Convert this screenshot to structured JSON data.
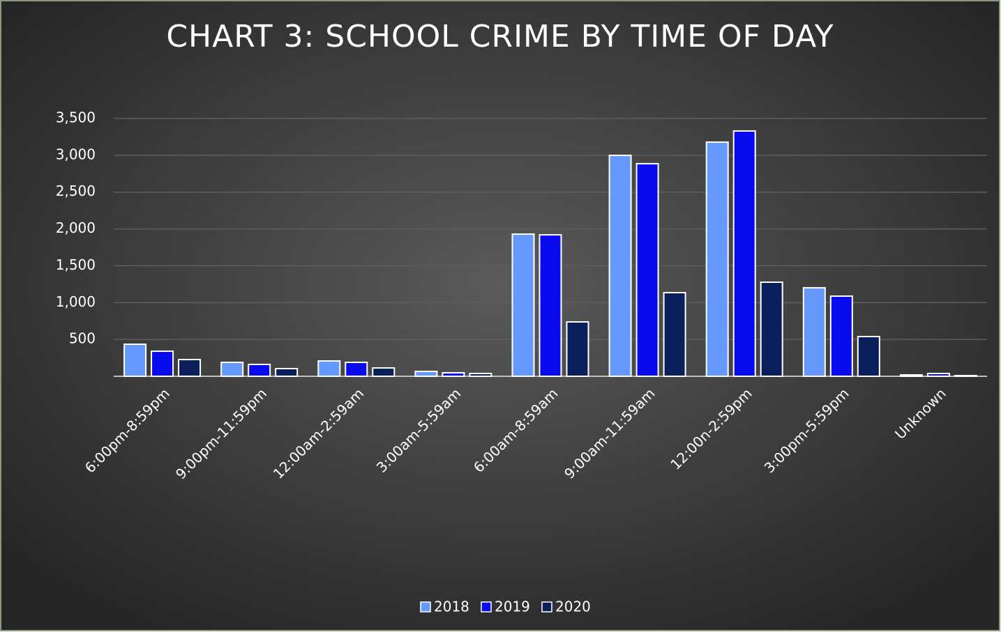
{
  "chart_data": {
    "type": "bar",
    "title": "CHART 3: SCHOOL CRIME BY TIME OF DAY",
    "categories": [
      "6:00pm-8:59pm",
      "9:00pm-11:59pm",
      "12:00am-2:59am",
      "3:00am-5:59am",
      "6:00am-8:59am",
      "9:00am-11:59am",
      "12:00n-2:59pm",
      "3:00pm-5:59pm",
      "Unknown"
    ],
    "series": [
      {
        "name": "2018",
        "color": "#6699ff",
        "values": [
          435,
          189,
          208,
          66,
          1930,
          2999,
          3179,
          1201,
          19
        ]
      },
      {
        "name": "2019",
        "color": "#0a0aee",
        "values": [
          340,
          161,
          189,
          47,
          1920,
          2886,
          3330,
          1088,
          38
        ]
      },
      {
        "name": "2020",
        "color": "#0a1f5c",
        "values": [
          227,
          104,
          113,
          38,
          738,
          1135,
          1277,
          539,
          9
        ]
      }
    ],
    "ylim": [
      0,
      3500
    ],
    "yticks": [
      500,
      {
        "value": 1000,
        "label": "1,000"
      },
      {
        "value": 1500,
        "label": "1,500"
      },
      {
        "value": 2000,
        "label": "2,000"
      },
      {
        "value": 2500,
        "label": "2,500"
      },
      {
        "value": 3000,
        "label": "3,000"
      },
      {
        "value": 3500,
        "label": "3,500"
      }
    ],
    "grid": true,
    "legend": "bottom"
  }
}
